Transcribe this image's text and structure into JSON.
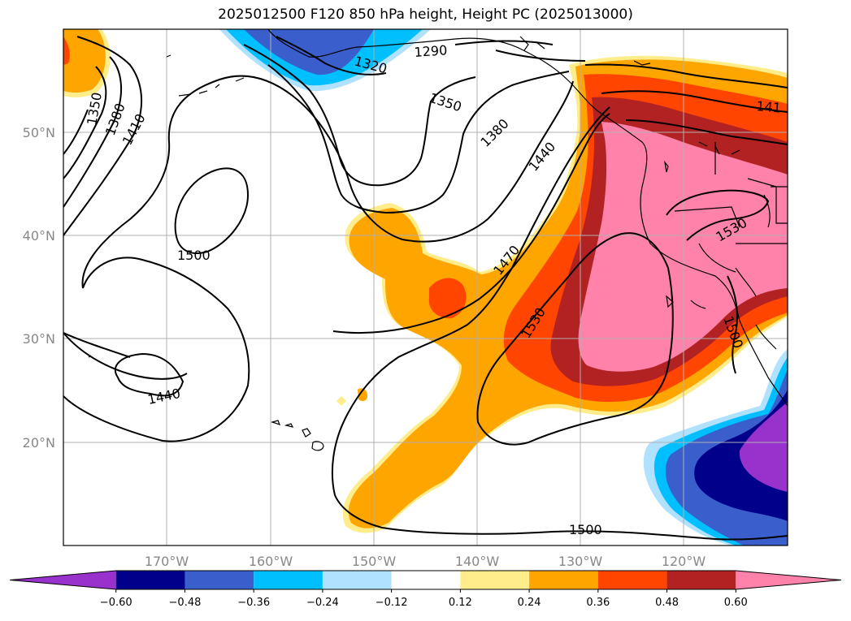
{
  "title": "2025012500 F120 850 hPa height, Height PC (2025013000)",
  "map": {
    "lat_labels": [
      {
        "text": "50°N",
        "lat": 50
      },
      {
        "text": "40°N",
        "lat": 40
      },
      {
        "text": "30°N",
        "lat": 30
      },
      {
        "text": "20°N",
        "lat": 20
      }
    ],
    "lon_labels": [
      {
        "text": "170°W",
        "lon": -170
      },
      {
        "text": "160°W",
        "lon": -160
      },
      {
        "text": "150°W",
        "lon": -150
      },
      {
        "text": "140°W",
        "lon": -140
      },
      {
        "text": "130°W",
        "lon": -130
      },
      {
        "text": "120°W",
        "lon": -120
      }
    ],
    "extent": {
      "lon_min": -180,
      "lon_max": -110,
      "lat_min": 10,
      "lat_max": 60
    },
    "gridlines": true,
    "contour_labels": [
      "1290",
      "1320",
      "1350",
      "1350",
      "1380",
      "1410",
      "1380",
      "1440",
      "1470",
      "1500",
      "1500",
      "1530",
      "1530",
      "1500",
      "1440",
      "141"
    ]
  },
  "colorbar": {
    "ticks": [
      "−0.60",
      "−0.48",
      "−0.36",
      "−0.24",
      "−0.12",
      "0.12",
      "0.24",
      "0.36",
      "0.48",
      "0.60"
    ],
    "colors": [
      "#9932cc",
      "#00008b",
      "#3a5fcd",
      "#00bfff",
      "#b0e2ff",
      "#ffffff",
      "#ffec8b",
      "#ffa500",
      "#ff4500",
      "#b22222",
      "#ff82ab"
    ]
  }
}
